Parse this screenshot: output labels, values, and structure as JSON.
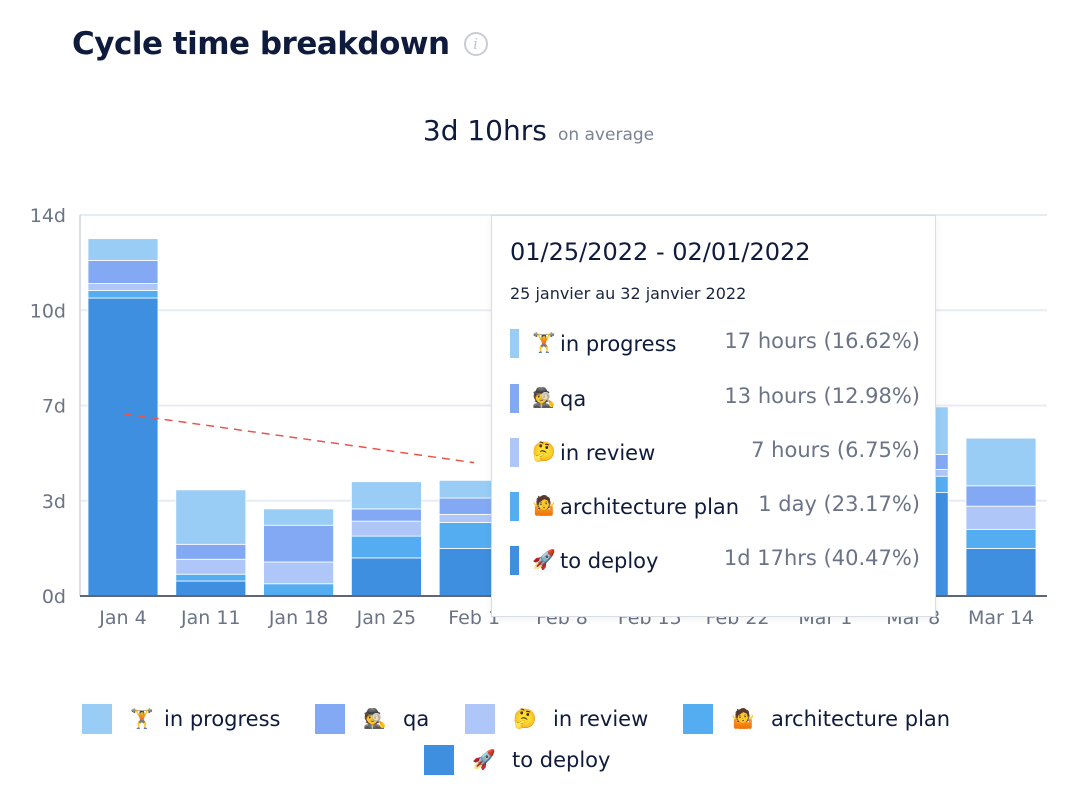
{
  "header": {
    "title": "Cycle time breakdown",
    "info_glyph": "i",
    "info_icon": "info-circle-icon"
  },
  "summary": {
    "value": "3d 10hrs",
    "caption": "on average"
  },
  "colors": {
    "in_progress": "#99cdf5",
    "qa": "#84a9f4",
    "in_review": "#aec6f8",
    "architecture_plan": "#55adf1",
    "to_deploy": "#3f8fe0",
    "trend_line": "#e8564a",
    "grid": "#e7ebf3"
  },
  "chart_data": {
    "type": "bar",
    "stacked": true,
    "title": "Cycle time breakdown",
    "ylim": [
      0,
      14
    ],
    "y_ticks": [
      "0d",
      "3d",
      "7d",
      "10d",
      "14d"
    ],
    "y_tick_values": [
      0,
      3.5,
      7,
      10.5,
      14
    ],
    "grid": true,
    "legend_position": "bottom",
    "categories": [
      "Jan 4",
      "Jan 11",
      "Jan 18",
      "Jan 25",
      "Feb 1",
      "Feb 8",
      "Feb 15",
      "Feb 22",
      "Mar 1",
      "Mar 8",
      "Mar 14"
    ],
    "visible_bars": [
      true,
      true,
      true,
      true,
      true,
      false,
      false,
      false,
      false,
      true,
      true
    ],
    "series": [
      {
        "name": "to deploy",
        "key": "to_deploy",
        "values": [
          10.95,
          0.55,
          0.0,
          1.4,
          1.75,
          0,
          0,
          0,
          0,
          3.8,
          1.75
        ]
      },
      {
        "name": "architecture plan",
        "key": "architecture_plan",
        "values": [
          0.28,
          0.25,
          0.45,
          0.8,
          0.95,
          0,
          0,
          0,
          0,
          0.6,
          0.7
        ]
      },
      {
        "name": "in review",
        "key": "in_review",
        "values": [
          0.25,
          0.55,
          0.8,
          0.55,
          0.3,
          0,
          0,
          0,
          0,
          0.25,
          0.85
        ]
      },
      {
        "name": "qa",
        "key": "qa",
        "values": [
          0.85,
          0.55,
          1.35,
          0.45,
          0.6,
          0,
          0,
          0,
          0,
          0.55,
          0.75
        ]
      },
      {
        "name": "in progress",
        "key": "in_progress",
        "values": [
          0.8,
          2.0,
          0.6,
          1.0,
          0.65,
          0,
          0,
          0,
          0,
          1.75,
          1.75
        ]
      }
    ],
    "trend": {
      "from_category": "Jan 4",
      "from_value": 6.7,
      "to_category": "Feb 1",
      "to_value": 4.9
    }
  },
  "tooltip": {
    "range": "01/25/2022 - 02/01/2022",
    "subtitle": "25 janvier au 32 janvier 2022",
    "rows": [
      {
        "key": "in_progress",
        "emoji": "🏋️",
        "label": "in progress",
        "value": "17 hours (16.62%)"
      },
      {
        "key": "qa",
        "emoji": "🕵️",
        "label": "qa",
        "value": "13 hours (12.98%)"
      },
      {
        "key": "in_review",
        "emoji": "🤔",
        "label": "in review",
        "value": "7 hours (6.75%)"
      },
      {
        "key": "architecture_plan",
        "emoji": "🤷",
        "label": "architecture plan",
        "value": "1 day (23.17%)"
      },
      {
        "key": "to_deploy",
        "emoji": "🚀",
        "label": "to deploy",
        "value": "1d 17hrs (40.47%)"
      }
    ]
  },
  "legend": [
    {
      "key": "in_progress",
      "emoji": "🏋️",
      "label": "in progress"
    },
    {
      "key": "qa",
      "emoji": "🕵️",
      "label": "qa"
    },
    {
      "key": "in_review",
      "emoji": "🤔",
      "label": "in review"
    },
    {
      "key": "architecture_plan",
      "emoji": "🤷",
      "label": "architecture plan"
    },
    {
      "key": "to_deploy",
      "emoji": "🚀",
      "label": "to deploy"
    }
  ]
}
